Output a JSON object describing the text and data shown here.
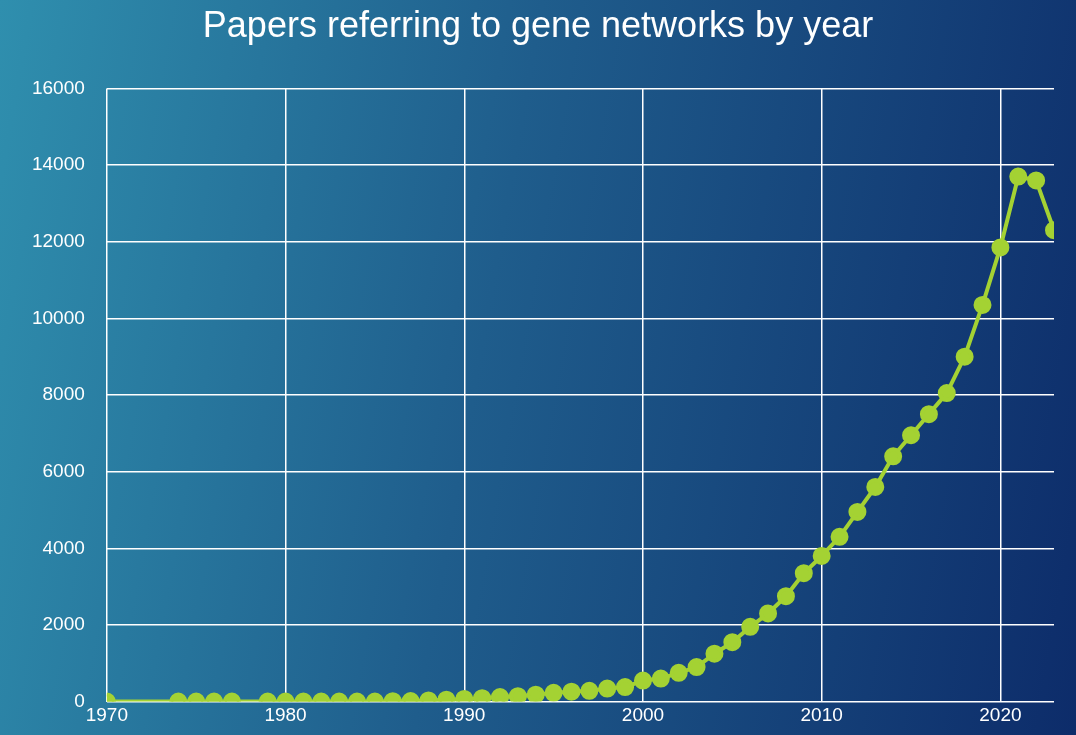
{
  "chart_data": {
    "type": "line",
    "title": "Papers referring to gene networks by year",
    "x": [
      1970,
      1974,
      1975,
      1976,
      1977,
      1979,
      1980,
      1981,
      1982,
      1983,
      1984,
      1985,
      1986,
      1987,
      1988,
      1989,
      1990,
      1991,
      1992,
      1993,
      1994,
      1995,
      1996,
      1997,
      1998,
      1999,
      2000,
      2001,
      2002,
      2003,
      2004,
      2005,
      2006,
      2007,
      2008,
      2009,
      2010,
      2011,
      2012,
      2013,
      2014,
      2015,
      2016,
      2017,
      2018,
      2019,
      2020,
      2021,
      2022,
      2023
    ],
    "series": [
      {
        "color": "#a4d233",
        "values": [
          0,
          0,
          0,
          0,
          0,
          0,
          0,
          0,
          0,
          0,
          0,
          0,
          10,
          15,
          30,
          50,
          70,
          90,
          120,
          140,
          180,
          230,
          260,
          280,
          340,
          380,
          550,
          600,
          750,
          900,
          1250,
          1550,
          1950,
          2300,
          2750,
          3350,
          3800,
          4300,
          4950,
          5600,
          6400,
          6950,
          7500,
          8050,
          9000,
          10350,
          11850,
          13700,
          13600,
          12300
        ]
      }
    ],
    "xlim": [
      1970,
      2023
    ],
    "xticks": [
      1970,
      1980,
      1990,
      2000,
      2010,
      2020
    ],
    "ylim": [
      0,
      16000
    ],
    "yticks": [
      0,
      2000,
      4000,
      6000,
      8000,
      10000,
      12000,
      14000,
      16000
    ],
    "grid": true,
    "legend": false,
    "marker": "circle",
    "line_style": "solid"
  }
}
